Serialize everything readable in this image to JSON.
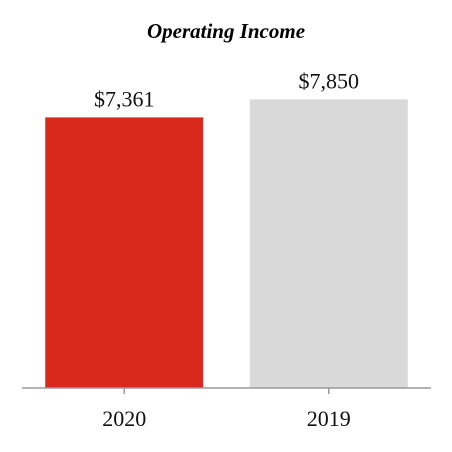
{
  "chart_data": {
    "type": "bar",
    "title": "Operating Income",
    "xlabel": "",
    "ylabel": "",
    "categories": [
      "2020",
      "2019"
    ],
    "values": [
      7361,
      7850
    ],
    "data_labels": [
      "$7,361",
      "$7,850"
    ],
    "colors": [
      "#d9291c",
      "#d9d9d9"
    ],
    "axis_color": "#9a9a9a",
    "ylim": [
      0,
      8650
    ],
    "grid": false,
    "legend": "none"
  }
}
